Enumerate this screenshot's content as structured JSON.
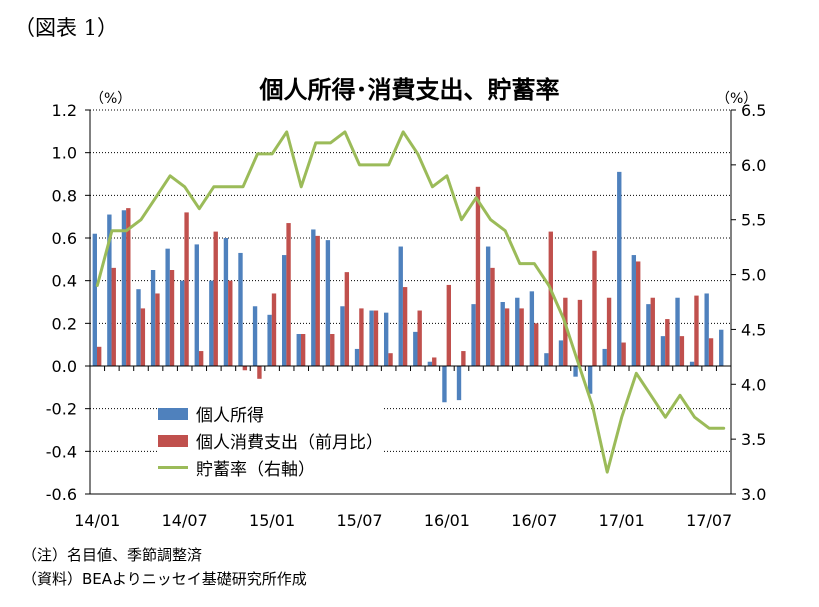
{
  "figure_label": "（図表 1）",
  "notes": [
    "（注）名目値、季節調整済",
    "（資料）BEAよりニッセイ基礎研究所作成"
  ],
  "colors": {
    "income": "#4f81bd",
    "spending": "#c0504d",
    "saving": "#9bbb59"
  },
  "chart_data": {
    "type": "bar",
    "title": "個人所得･消費支出、貯蓄率",
    "ylabel_left": "（%）",
    "ylabel_right": "（%）",
    "ylim_left": [
      -0.6,
      1.2
    ],
    "ylim_right": [
      3.0,
      6.5
    ],
    "yticks_left": [
      "1.2",
      "1.0",
      "0.8",
      "0.6",
      "0.4",
      "0.2",
      "0.0",
      "-0.2",
      "-0.4",
      "-0.6"
    ],
    "yticks_right": [
      "6.5",
      "6.0",
      "5.5",
      "5.0",
      "4.5",
      "4.0",
      "3.5",
      "3.0"
    ],
    "xtick_labels": [
      "14/01",
      "14/07",
      "15/01",
      "15/07",
      "16/01",
      "16/07",
      "17/01",
      "17/07"
    ],
    "grid": true,
    "legend_position": "lower-left",
    "categories": [
      "14/01",
      "14/02",
      "14/03",
      "14/04",
      "14/05",
      "14/06",
      "14/07",
      "14/08",
      "14/09",
      "14/10",
      "14/11",
      "14/12",
      "15/01",
      "15/02",
      "15/03",
      "15/04",
      "15/05",
      "15/06",
      "15/07",
      "15/08",
      "15/09",
      "15/10",
      "15/11",
      "15/12",
      "16/01",
      "16/02",
      "16/03",
      "16/04",
      "16/05",
      "16/06",
      "16/07",
      "16/08",
      "16/09",
      "16/10",
      "16/11",
      "16/12",
      "17/01",
      "17/02",
      "17/03",
      "17/04",
      "17/05",
      "17/06",
      "17/07",
      "17/08"
    ],
    "series": [
      {
        "name": "個人所得",
        "type": "bar",
        "axis": "left",
        "values": [
          0.62,
          0.71,
          0.73,
          0.36,
          0.45,
          0.55,
          0.4,
          0.57,
          0.4,
          0.6,
          0.53,
          0.28,
          0.24,
          0.52,
          0.15,
          0.64,
          0.59,
          0.28,
          0.08,
          0.26,
          0.25,
          0.56,
          0.16,
          0.02,
          -0.17,
          -0.16,
          0.29,
          0.56,
          0.3,
          0.32,
          0.35,
          0.06,
          0.12,
          -0.05,
          -0.13,
          0.08,
          0.91,
          0.52,
          0.29,
          0.14,
          0.32,
          0.02,
          0.34,
          0.17
        ]
      },
      {
        "name": "個人消費支出（前月比）",
        "type": "bar",
        "axis": "left",
        "values": [
          0.09,
          0.46,
          0.74,
          0.27,
          0.34,
          0.45,
          0.72,
          0.07,
          0.63,
          0.4,
          -0.02,
          -0.06,
          0.34,
          0.67,
          0.15,
          0.61,
          0.15,
          0.44,
          0.27,
          0.26,
          0.06,
          0.37,
          0.26,
          0.04,
          0.38,
          0.07,
          0.84,
          0.46,
          0.27,
          0.27,
          0.2,
          0.63,
          0.32,
          0.31,
          0.54,
          0.32,
          0.11,
          0.49,
          0.32,
          0.22,
          0.14,
          0.33,
          0.13,
          0.0
        ]
      },
      {
        "name": "貯蓄率（右軸）",
        "type": "line",
        "axis": "right",
        "values": [
          4.9,
          5.4,
          5.4,
          5.5,
          5.7,
          5.9,
          5.8,
          5.6,
          5.8,
          5.8,
          5.8,
          6.1,
          6.1,
          6.3,
          5.8,
          6.2,
          6.2,
          6.3,
          6.0,
          6.0,
          6.0,
          6.3,
          6.1,
          5.8,
          5.9,
          5.5,
          5.7,
          5.5,
          5.4,
          5.1,
          5.1,
          4.9,
          4.6,
          4.2,
          3.8,
          3.2,
          3.7,
          4.1,
          3.9,
          3.7,
          3.9,
          3.7,
          3.6,
          3.6
        ]
      }
    ]
  }
}
